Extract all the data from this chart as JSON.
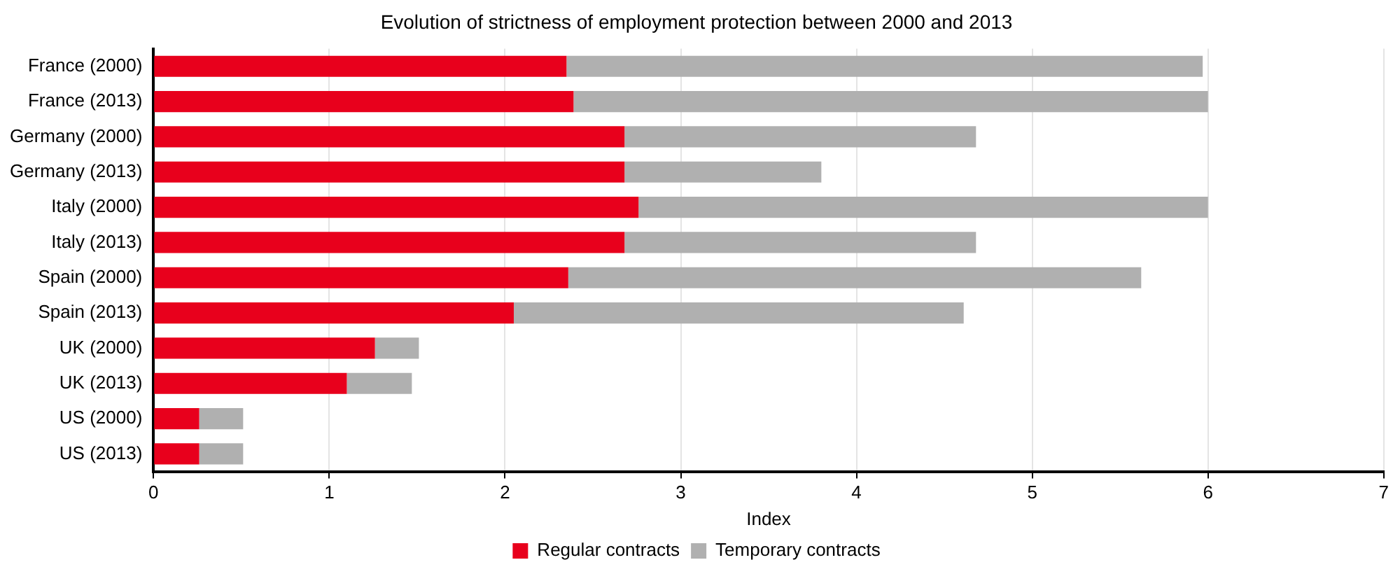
{
  "chart_data": {
    "type": "bar",
    "orientation": "horizontal",
    "stacked": true,
    "title": "Evolution of strictness of employment protection between 2000 and 2013",
    "xlabel": "Index",
    "categories": [
      "France (2000)",
      "France (2013)",
      "Germany (2000)",
      "Germany (2013)",
      "Italy (2000)",
      "Italy (2013)",
      "Spain (2000)",
      "Spain (2013)",
      "UK (2000)",
      "UK (2013)",
      "US (2000)",
      "US (2013)"
    ],
    "series": [
      {
        "name": "Regular contracts",
        "color": "#e8001c",
        "values": [
          2.35,
          2.39,
          2.68,
          2.68,
          2.76,
          2.68,
          2.36,
          2.05,
          1.26,
          1.1,
          0.26,
          0.26
        ]
      },
      {
        "name": "Temporary contracts",
        "color": "#b0b0b0",
        "values": [
          3.62,
          3.61,
          2.0,
          1.12,
          3.24,
          2.0,
          3.26,
          2.56,
          0.25,
          0.37,
          0.25,
          0.25
        ]
      }
    ],
    "xlim": [
      0,
      7
    ],
    "xticks": [
      0,
      1,
      2,
      3,
      4,
      5,
      6,
      7
    ],
    "grid": "x",
    "legend": "bottom"
  }
}
